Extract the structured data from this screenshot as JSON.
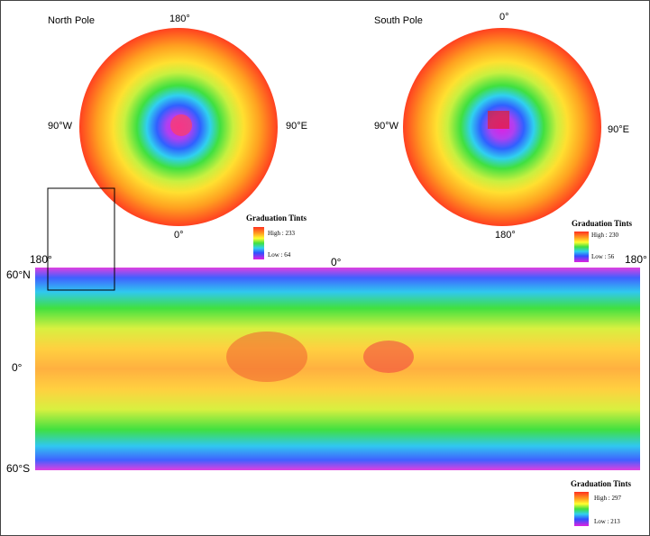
{
  "north_pole": {
    "title": "North Pole",
    "labels": {
      "top": "180°",
      "left": "90°W",
      "right": "90°E",
      "bottom": "0°"
    },
    "legend": {
      "title": "Graduation Tints",
      "high": "High : 233",
      "low": "Low : 64"
    }
  },
  "south_pole": {
    "title": "South Pole",
    "labels": {
      "top": "0°",
      "left": "90°W",
      "right": "90°E",
      "bottom": "180°"
    },
    "legend": {
      "title": "Graduation Tints",
      "high": "High : 230",
      "low": "Low : 56"
    }
  },
  "map": {
    "labels": {
      "left_lon": "180°",
      "center_lon": "0°",
      "right_lon": "180°",
      "lat_top": "60°N",
      "lat_mid": "0°",
      "lat_bottom": "60°S"
    },
    "legend": {
      "title": "Graduation Tints",
      "high": "High : 297",
      "low": "Low : 213"
    }
  }
}
